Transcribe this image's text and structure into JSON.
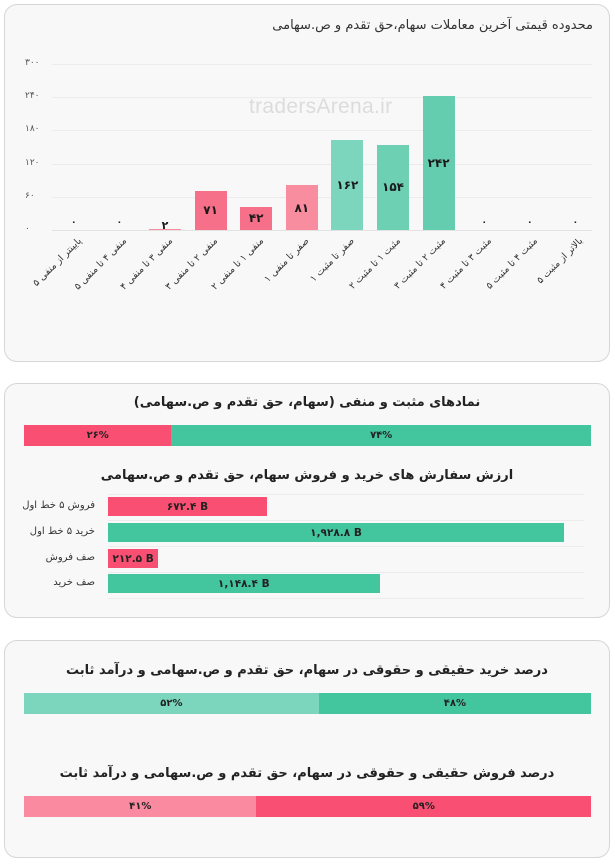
{
  "colors": {
    "negative": "#f7708a",
    "negative_light": "#f98da0",
    "negative_strong": "#f94f73",
    "positive": "#6dd0b3",
    "positive_light": "#7cd6bd",
    "positive_strong": "#43c59e",
    "watermark": "#dcdcdc"
  },
  "card1": {
    "title": "محدوده قیمتی آخرین معاملات سهام،حق تقدم و ص.سهامی",
    "watermark": "tradersArena.ir"
  },
  "chart_data": [
    {
      "type": "bar",
      "title": "محدوده قیمتی آخرین معاملات سهام،حق تقدم و ص.سهامی",
      "xlabel": "",
      "ylabel": "",
      "ylim": [
        0,
        300
      ],
      "yticks": [
        "۰",
        "۶۰",
        "۱۲۰",
        "۱۸۰",
        "۲۴۰",
        "۳۰۰"
      ],
      "ytick_values": [
        0,
        60,
        120,
        180,
        240,
        300
      ],
      "grid": true,
      "categories": [
        "پایینتر از منفی ۵",
        "منفی ۴ تا منفی ۵",
        "منفی ۳ تا منفی ۴",
        "منفی ۲ تا منفی ۳",
        "منفی ۱ تا منفی ۲",
        "صفر تا منفی ۱",
        "صفر تا مثبت ۱",
        "مثبت ۱ تا مثبت ۲",
        "مثبت ۲ تا مثبت ۳",
        "مثبت ۳ تا مثبت ۴",
        "مثبت ۴ تا مثبت ۵",
        "بالاتر از مثبت ۵"
      ],
      "values": [
        0,
        0,
        2,
        71,
        42,
        81,
        162,
        154,
        242,
        0,
        0,
        0
      ],
      "value_labels": [
        "۰",
        "۰",
        "۲",
        "۷۱",
        "۴۲",
        "۸۱",
        "۱۶۲",
        "۱۵۴",
        "۲۴۲",
        "۰",
        "۰",
        "۰"
      ],
      "bar_colors": [
        "#f7708a",
        "#f7708a",
        "#f98da0",
        "#f7708a",
        "#f7708a",
        "#f98da0",
        "#7cd6bd",
        "#6dd0b3",
        "#64cdaf",
        "#6dd0b3",
        "#6dd0b3",
        "#6dd0b3"
      ]
    },
    {
      "type": "bar",
      "orientation": "stacked-horizontal",
      "title": "نمادهای مثبت و منفی (سهام، حق تقدم و ص.سهامی)",
      "series": [
        {
          "name": "منفی",
          "values": [
            26
          ],
          "label": "۲۶%",
          "color": "#f94f73"
        },
        {
          "name": "مثبت",
          "values": [
            74
          ],
          "label": "۷۴%",
          "color": "#43c59e"
        }
      ]
    },
    {
      "type": "bar",
      "orientation": "horizontal",
      "title": "ارزش سفارش های خرید و فروش سهام، حق تقدم و ص.سهامی",
      "categories": [
        "فروش ۵ خط اول",
        "خرید ۵ خط اول",
        "صف فروش",
        "صف خرید"
      ],
      "values": [
        672.4,
        1928.8,
        212.5,
        1148.4
      ],
      "value_labels": [
        "۶۷۲.۴ B",
        "۱,۹۲۸.۸ B",
        "۲۱۲.۵ B",
        "۱,۱۴۸.۴ B"
      ],
      "unit": "B",
      "bar_colors": [
        "#f94f73",
        "#43c59e",
        "#f94f73",
        "#43c59e"
      ]
    },
    {
      "type": "bar",
      "orientation": "stacked-horizontal",
      "title": "درصد خرید حقیقی و حقوقی در سهام، حق تقدم و ص.سهامی و درآمد ثابت",
      "series": [
        {
          "name": "segment-left",
          "values": [
            52
          ],
          "label": "۵۲%",
          "color": "#7cd6bd"
        },
        {
          "name": "segment-right",
          "values": [
            48
          ],
          "label": "۴۸%",
          "color": "#43c59e"
        }
      ]
    },
    {
      "type": "bar",
      "orientation": "stacked-horizontal",
      "title": "درصد فروش حقیقی و حقوقی در سهام، حق تقدم و ص.سهامی و درآمد ثابت",
      "series": [
        {
          "name": "segment-left",
          "values": [
            41
          ],
          "label": "۴۱%",
          "color": "#f98aa0"
        },
        {
          "name": "segment-right",
          "values": [
            59
          ],
          "label": "۵۹%",
          "color": "#f94f73"
        }
      ]
    }
  ],
  "card2": {
    "title1": "نمادهای مثبت و منفی (سهام، حق تقدم و ص.سهامی)",
    "posneg": {
      "neg_label": "۲۶%",
      "pos_label": "۷۴%",
      "neg_pct": 26,
      "pos_pct": 74
    },
    "title2": "ارزش سفارش های خرید و فروش سهام، حق تقدم و ص.سهامی",
    "orders": [
      {
        "label": "فروش ۵ خط اول",
        "value_label": "۶۷۲.۴ B",
        "value": 672.4
      },
      {
        "label": "خرید ۵ خط اول",
        "value_label": "۱,۹۲۸.۸ B",
        "value": 1928.8
      },
      {
        "label": "صف فروش",
        "value_label": "۲۱۲.۵ B",
        "value": 212.5
      },
      {
        "label": "صف خرید",
        "value_label": "۱,۱۴۸.۴ B",
        "value": 1148.4
      }
    ]
  },
  "card3": {
    "buy_title": "درصد خرید حقیقی و حقوقی در سهام، حق تقدم و ص.سهامی و درآمد ثابت",
    "buy": {
      "left_label": "۵۲%",
      "right_label": "۴۸%",
      "left_pct": 52,
      "right_pct": 48
    },
    "sell_title": "درصد فروش حقیقی و حقوقی در سهام، حق تقدم و ص.سهامی و درآمد ثابت",
    "sell": {
      "left_label": "۴۱%",
      "right_label": "۵۹%",
      "left_pct": 41,
      "right_pct": 59
    }
  }
}
